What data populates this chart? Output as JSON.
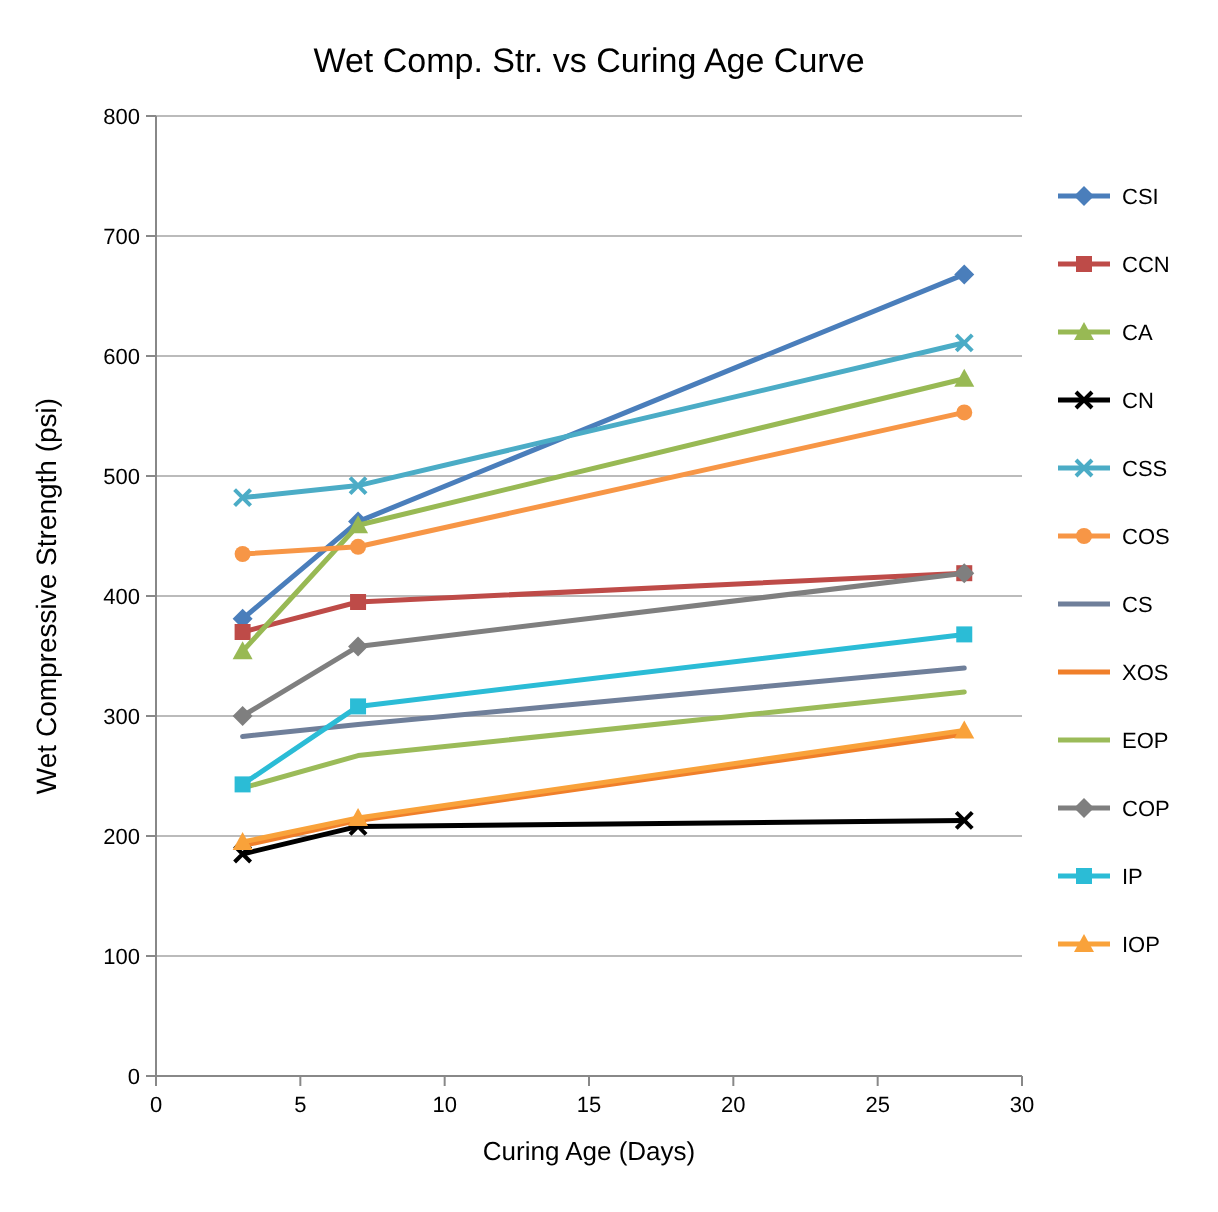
{
  "chart_data": {
    "type": "line",
    "title": "Wet Comp. Str. vs Curing Age Curve",
    "xlabel": "Curing Age (Days)",
    "ylabel": "Wet Compressive Strength (psi)",
    "x": [
      3,
      7,
      28
    ],
    "xlim": [
      0,
      30
    ],
    "xticks": [
      0,
      5,
      10,
      15,
      20,
      25,
      30
    ],
    "ylim": [
      0,
      800
    ],
    "yticks": [
      0,
      100,
      200,
      300,
      400,
      500,
      600,
      700,
      800
    ],
    "grid": "y",
    "legend": "right",
    "line_style": "solid",
    "series": [
      {
        "name": "CSI",
        "color": "#4a7ebb",
        "marker": "diamond",
        "values": [
          381,
          462,
          668
        ]
      },
      {
        "name": "CCN",
        "color": "#be4b48",
        "marker": "square",
        "values": [
          370,
          395,
          419
        ]
      },
      {
        "name": "CA",
        "color": "#98b954",
        "marker": "triangle",
        "values": [
          354,
          459,
          581
        ]
      },
      {
        "name": "CN",
        "color": "#000000",
        "marker": "cross",
        "values": [
          185,
          208,
          213
        ]
      },
      {
        "name": "CSS",
        "color": "#4bacc6",
        "marker": "cross",
        "values": [
          482,
          492,
          611
        ]
      },
      {
        "name": "COS",
        "color": "#f79646",
        "marker": "circle",
        "values": [
          435,
          441,
          553
        ]
      },
      {
        "name": "CS",
        "color": "#6f7f9a",
        "marker": "none",
        "values": [
          283,
          293,
          340
        ]
      },
      {
        "name": "XOS",
        "color": "#f07f2a",
        "marker": "none",
        "values": [
          192,
          213,
          285
        ]
      },
      {
        "name": "EOP",
        "color": "#9bbb59",
        "marker": "none",
        "values": [
          240,
          267,
          320
        ]
      },
      {
        "name": "COP",
        "color": "#7f7f7f",
        "marker": "diamond",
        "values": [
          300,
          358,
          419
        ]
      },
      {
        "name": "IP",
        "color": "#2bbcd6",
        "marker": "square",
        "values": [
          243,
          308,
          368
        ]
      },
      {
        "name": "IOP",
        "color": "#f9a23a",
        "marker": "triangle",
        "values": [
          195,
          215,
          288
        ]
      }
    ]
  }
}
